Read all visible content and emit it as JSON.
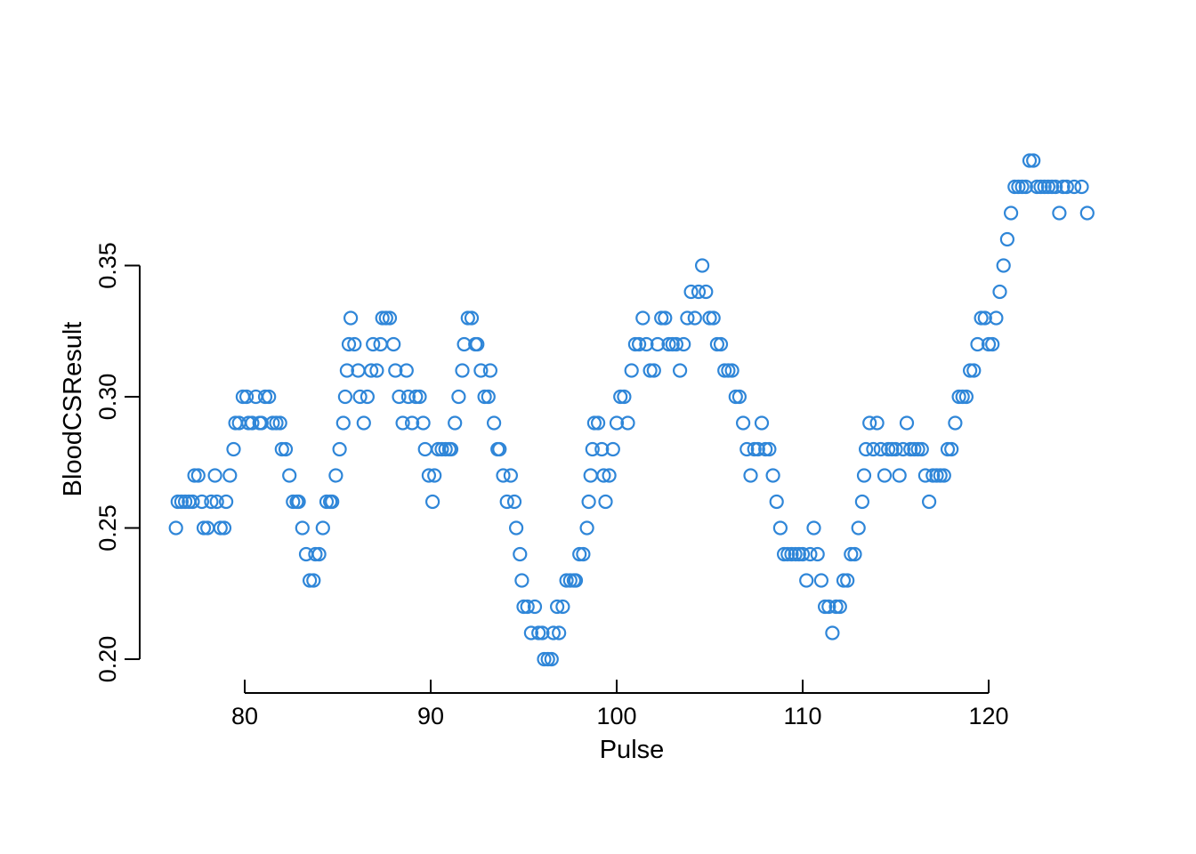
{
  "chart_data": {
    "type": "scatter",
    "title": "",
    "xlabel": "Pulse",
    "ylabel": "BloodCSResult",
    "xlim": [
      76.3,
      125.3
    ],
    "ylim": [
      0.2,
      0.39
    ],
    "x_ticks": [
      "80",
      "90",
      "100",
      "110",
      "120"
    ],
    "y_ticks": [
      "0.20",
      "0.25",
      "0.30",
      "0.35"
    ],
    "grid": false,
    "legend": "none",
    "marker": "open-circle",
    "point_color": "#2f86d8",
    "series": [
      {
        "points": [
          [
            76.3,
            0.25
          ],
          [
            76.4,
            0.26
          ],
          [
            76.6,
            0.26
          ],
          [
            76.8,
            0.26
          ],
          [
            77.0,
            0.26
          ],
          [
            77.2,
            0.26
          ],
          [
            77.3,
            0.27
          ],
          [
            77.5,
            0.27
          ],
          [
            77.7,
            0.26
          ],
          [
            77.8,
            0.25
          ],
          [
            78.0,
            0.25
          ],
          [
            78.2,
            0.26
          ],
          [
            78.4,
            0.27
          ],
          [
            78.5,
            0.26
          ],
          [
            78.7,
            0.25
          ],
          [
            78.9,
            0.25
          ],
          [
            79.0,
            0.26
          ],
          [
            79.2,
            0.27
          ],
          [
            79.4,
            0.28
          ],
          [
            79.5,
            0.29
          ],
          [
            79.7,
            0.29
          ],
          [
            79.9,
            0.3
          ],
          [
            80.1,
            0.3
          ],
          [
            80.2,
            0.29
          ],
          [
            80.4,
            0.29
          ],
          [
            80.6,
            0.3
          ],
          [
            80.8,
            0.29
          ],
          [
            80.9,
            0.29
          ],
          [
            81.1,
            0.3
          ],
          [
            81.3,
            0.3
          ],
          [
            81.5,
            0.29
          ],
          [
            81.7,
            0.29
          ],
          [
            81.9,
            0.29
          ],
          [
            82.0,
            0.28
          ],
          [
            82.2,
            0.28
          ],
          [
            82.4,
            0.27
          ],
          [
            82.6,
            0.26
          ],
          [
            82.8,
            0.26
          ],
          [
            82.9,
            0.26
          ],
          [
            83.1,
            0.25
          ],
          [
            83.3,
            0.24
          ],
          [
            83.5,
            0.23
          ],
          [
            83.7,
            0.23
          ],
          [
            83.8,
            0.24
          ],
          [
            84.0,
            0.24
          ],
          [
            84.2,
            0.25
          ],
          [
            84.4,
            0.26
          ],
          [
            84.6,
            0.26
          ],
          [
            84.7,
            0.26
          ],
          [
            84.9,
            0.27
          ],
          [
            85.1,
            0.28
          ],
          [
            85.3,
            0.29
          ],
          [
            85.4,
            0.3
          ],
          [
            85.5,
            0.31
          ],
          [
            85.6,
            0.32
          ],
          [
            85.7,
            0.33
          ],
          [
            85.9,
            0.32
          ],
          [
            86.1,
            0.31
          ],
          [
            86.2,
            0.3
          ],
          [
            86.4,
            0.29
          ],
          [
            86.6,
            0.3
          ],
          [
            86.8,
            0.31
          ],
          [
            86.9,
            0.32
          ],
          [
            87.1,
            0.31
          ],
          [
            87.3,
            0.32
          ],
          [
            87.4,
            0.33
          ],
          [
            87.6,
            0.33
          ],
          [
            87.8,
            0.33
          ],
          [
            88.0,
            0.32
          ],
          [
            88.1,
            0.31
          ],
          [
            88.3,
            0.3
          ],
          [
            88.5,
            0.29
          ],
          [
            88.7,
            0.31
          ],
          [
            88.8,
            0.3
          ],
          [
            89.0,
            0.29
          ],
          [
            89.2,
            0.3
          ],
          [
            89.4,
            0.3
          ],
          [
            89.6,
            0.29
          ],
          [
            89.7,
            0.28
          ],
          [
            89.9,
            0.27
          ],
          [
            90.1,
            0.26
          ],
          [
            90.2,
            0.27
          ],
          [
            90.4,
            0.28
          ],
          [
            90.6,
            0.28
          ],
          [
            90.8,
            0.28
          ],
          [
            91.0,
            0.28
          ],
          [
            91.1,
            0.28
          ],
          [
            91.3,
            0.29
          ],
          [
            91.5,
            0.3
          ],
          [
            91.7,
            0.31
          ],
          [
            91.8,
            0.32
          ],
          [
            92.0,
            0.33
          ],
          [
            92.2,
            0.33
          ],
          [
            92.4,
            0.32
          ],
          [
            92.5,
            0.32
          ],
          [
            92.7,
            0.31
          ],
          [
            92.9,
            0.3
          ],
          [
            93.1,
            0.3
          ],
          [
            93.2,
            0.31
          ],
          [
            93.4,
            0.29
          ],
          [
            93.6,
            0.28
          ],
          [
            93.7,
            0.28
          ],
          [
            93.9,
            0.27
          ],
          [
            94.1,
            0.26
          ],
          [
            94.3,
            0.27
          ],
          [
            94.5,
            0.26
          ],
          [
            94.6,
            0.25
          ],
          [
            94.8,
            0.24
          ],
          [
            94.9,
            0.23
          ],
          [
            95.0,
            0.22
          ],
          [
            95.2,
            0.22
          ],
          [
            95.4,
            0.21
          ],
          [
            95.6,
            0.22
          ],
          [
            95.8,
            0.21
          ],
          [
            96.0,
            0.21
          ],
          [
            96.1,
            0.2
          ],
          [
            96.3,
            0.2
          ],
          [
            96.5,
            0.2
          ],
          [
            96.6,
            0.21
          ],
          [
            96.8,
            0.22
          ],
          [
            96.9,
            0.21
          ],
          [
            97.1,
            0.22
          ],
          [
            97.3,
            0.23
          ],
          [
            97.5,
            0.23
          ],
          [
            97.7,
            0.23
          ],
          [
            97.8,
            0.23
          ],
          [
            98.0,
            0.24
          ],
          [
            98.2,
            0.24
          ],
          [
            98.4,
            0.25
          ],
          [
            98.5,
            0.26
          ],
          [
            98.6,
            0.27
          ],
          [
            98.7,
            0.28
          ],
          [
            98.8,
            0.29
          ],
          [
            99.0,
            0.29
          ],
          [
            99.2,
            0.28
          ],
          [
            99.3,
            0.27
          ],
          [
            99.4,
            0.26
          ],
          [
            99.6,
            0.27
          ],
          [
            99.8,
            0.28
          ],
          [
            100.0,
            0.29
          ],
          [
            100.2,
            0.3
          ],
          [
            100.4,
            0.3
          ],
          [
            100.6,
            0.29
          ],
          [
            100.8,
            0.31
          ],
          [
            101.0,
            0.32
          ],
          [
            101.2,
            0.32
          ],
          [
            101.4,
            0.33
          ],
          [
            101.6,
            0.32
          ],
          [
            101.8,
            0.31
          ],
          [
            102.0,
            0.31
          ],
          [
            102.2,
            0.32
          ],
          [
            102.4,
            0.33
          ],
          [
            102.6,
            0.33
          ],
          [
            102.8,
            0.32
          ],
          [
            103.0,
            0.32
          ],
          [
            103.2,
            0.32
          ],
          [
            103.4,
            0.31
          ],
          [
            103.6,
            0.32
          ],
          [
            103.8,
            0.33
          ],
          [
            104.0,
            0.34
          ],
          [
            104.2,
            0.33
          ],
          [
            104.4,
            0.34
          ],
          [
            104.6,
            0.35
          ],
          [
            104.8,
            0.34
          ],
          [
            105.0,
            0.33
          ],
          [
            105.2,
            0.33
          ],
          [
            105.4,
            0.32
          ],
          [
            105.6,
            0.32
          ],
          [
            105.8,
            0.31
          ],
          [
            106.0,
            0.31
          ],
          [
            106.2,
            0.31
          ],
          [
            106.4,
            0.3
          ],
          [
            106.6,
            0.3
          ],
          [
            106.8,
            0.29
          ],
          [
            107.0,
            0.28
          ],
          [
            107.2,
            0.27
          ],
          [
            107.4,
            0.28
          ],
          [
            107.6,
            0.28
          ],
          [
            107.8,
            0.29
          ],
          [
            108.0,
            0.28
          ],
          [
            108.2,
            0.28
          ],
          [
            108.4,
            0.27
          ],
          [
            108.6,
            0.26
          ],
          [
            108.8,
            0.25
          ],
          [
            109.0,
            0.24
          ],
          [
            109.2,
            0.24
          ],
          [
            109.4,
            0.24
          ],
          [
            109.6,
            0.24
          ],
          [
            109.8,
            0.24
          ],
          [
            110.0,
            0.24
          ],
          [
            110.2,
            0.23
          ],
          [
            110.4,
            0.24
          ],
          [
            110.6,
            0.25
          ],
          [
            110.8,
            0.24
          ],
          [
            111.0,
            0.23
          ],
          [
            111.2,
            0.22
          ],
          [
            111.4,
            0.22
          ],
          [
            111.6,
            0.21
          ],
          [
            111.8,
            0.22
          ],
          [
            112.0,
            0.22
          ],
          [
            112.2,
            0.23
          ],
          [
            112.4,
            0.23
          ],
          [
            112.6,
            0.24
          ],
          [
            112.8,
            0.24
          ],
          [
            113.0,
            0.25
          ],
          [
            113.2,
            0.26
          ],
          [
            113.3,
            0.27
          ],
          [
            113.4,
            0.28
          ],
          [
            113.6,
            0.29
          ],
          [
            113.8,
            0.28
          ],
          [
            114.0,
            0.29
          ],
          [
            114.2,
            0.28
          ],
          [
            114.4,
            0.27
          ],
          [
            114.6,
            0.28
          ],
          [
            114.8,
            0.28
          ],
          [
            115.0,
            0.28
          ],
          [
            115.2,
            0.27
          ],
          [
            115.4,
            0.28
          ],
          [
            115.6,
            0.29
          ],
          [
            115.8,
            0.28
          ],
          [
            116.0,
            0.28
          ],
          [
            116.2,
            0.28
          ],
          [
            116.4,
            0.28
          ],
          [
            116.6,
            0.27
          ],
          [
            116.8,
            0.26
          ],
          [
            117.0,
            0.27
          ],
          [
            117.2,
            0.27
          ],
          [
            117.4,
            0.27
          ],
          [
            117.6,
            0.27
          ],
          [
            117.8,
            0.28
          ],
          [
            118.0,
            0.28
          ],
          [
            118.2,
            0.29
          ],
          [
            118.4,
            0.3
          ],
          [
            118.6,
            0.3
          ],
          [
            118.8,
            0.3
          ],
          [
            119.0,
            0.31
          ],
          [
            119.2,
            0.31
          ],
          [
            119.4,
            0.32
          ],
          [
            119.6,
            0.33
          ],
          [
            119.8,
            0.33
          ],
          [
            120.0,
            0.32
          ],
          [
            120.2,
            0.32
          ],
          [
            120.4,
            0.33
          ],
          [
            120.6,
            0.34
          ],
          [
            120.8,
            0.35
          ],
          [
            121.0,
            0.36
          ],
          [
            121.2,
            0.37
          ],
          [
            121.4,
            0.38
          ],
          [
            121.6,
            0.38
          ],
          [
            121.8,
            0.38
          ],
          [
            122.0,
            0.38
          ],
          [
            122.2,
            0.39
          ],
          [
            122.4,
            0.39
          ],
          [
            122.6,
            0.38
          ],
          [
            122.8,
            0.38
          ],
          [
            123.0,
            0.38
          ],
          [
            123.2,
            0.38
          ],
          [
            123.4,
            0.38
          ],
          [
            123.6,
            0.38
          ],
          [
            123.8,
            0.37
          ],
          [
            124.0,
            0.38
          ],
          [
            124.2,
            0.38
          ],
          [
            124.6,
            0.38
          ],
          [
            125.0,
            0.38
          ],
          [
            125.3,
            0.37
          ]
        ]
      }
    ]
  }
}
